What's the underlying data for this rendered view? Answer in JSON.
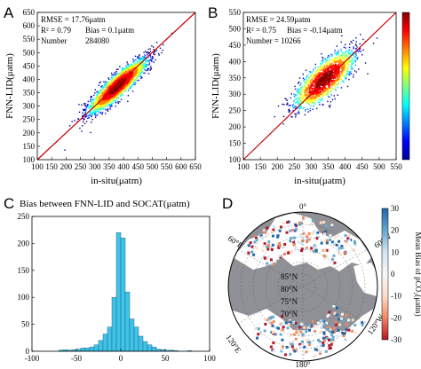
{
  "chart_data": [
    {
      "panel": "A",
      "type": "scatter",
      "density_colored": true,
      "xlabel": "in-situ(μatm)",
      "ylabel": "FNN-LID(μatm)",
      "xlim": [
        100,
        650
      ],
      "ylim": [
        100,
        650
      ],
      "xticks": [
        "100",
        "150",
        "200",
        "250",
        "300",
        "350",
        "400",
        "450",
        "500",
        "550",
        "600",
        "650"
      ],
      "yticks": [
        "100",
        "150",
        "200",
        "250",
        "300",
        "350",
        "400",
        "450",
        "500",
        "550",
        "600",
        "650"
      ],
      "one_to_one_line": true,
      "stats": {
        "rmse_label": "RMSE = 17.76μatm",
        "r2_label": "R² = 0.79",
        "bias_label": "Bias = 0.1μatm",
        "number_label": "Number",
        "number_value": "284080"
      },
      "cluster": {
        "center": [
          380,
          375
        ],
        "x_range": [
          120,
          640
        ],
        "y_range": [
          115,
          640
        ]
      }
    },
    {
      "panel": "B",
      "type": "scatter",
      "density_colored": true,
      "xlabel": "in-situ(μatm)",
      "ylabel": "FNN-LID(μatm)",
      "xlim": [
        100,
        550
      ],
      "ylim": [
        100,
        550
      ],
      "xticks": [
        "100",
        "150",
        "200",
        "250",
        "300",
        "350",
        "400",
        "450",
        "500",
        "550"
      ],
      "yticks": [
        "100",
        "150",
        "200",
        "250",
        "300",
        "350",
        "400",
        "450",
        "500",
        "550"
      ],
      "one_to_one_line": true,
      "stats": {
        "rmse_label": "RMSE = 24.59μatm",
        "r2_label": "R² = 0.75",
        "bias_label": "Bias = -0.14μatm",
        "number_label": "Number = 10266"
      },
      "cluster": {
        "center": [
          340,
          345
        ],
        "x_range": [
          150,
          530
        ],
        "y_range": [
          150,
          540
        ]
      }
    },
    {
      "panel": "C",
      "type": "bar",
      "title": "Bias between FNN-LID and SOCAT(μatm)",
      "xlim": [
        -100,
        100
      ],
      "ylim": [
        0,
        250
      ],
      "xticks": [
        "-100",
        "-50",
        "0",
        "50",
        "100"
      ],
      "yticks": [
        "0",
        "50",
        "100",
        "150",
        "200",
        "250"
      ],
      "bin_width": 5,
      "bin_centers": [
        -97.5,
        -92.5,
        -87.5,
        -82.5,
        -77.5,
        -72.5,
        -67.5,
        -62.5,
        -57.5,
        -52.5,
        -47.5,
        -42.5,
        -37.5,
        -32.5,
        -27.5,
        -22.5,
        -17.5,
        -12.5,
        -7.5,
        -2.5,
        2.5,
        7.5,
        12.5,
        17.5,
        22.5,
        27.5,
        32.5,
        37.5,
        42.5,
        47.5,
        52.5,
        57.5,
        62.5,
        67.5,
        72.5,
        77.5,
        82.5,
        87.5,
        92.5,
        97.5
      ],
      "counts": [
        0,
        0,
        0,
        0,
        0,
        0,
        2,
        3,
        2,
        3,
        4,
        6,
        6,
        8,
        12,
        20,
        32,
        45,
        100,
        220,
        210,
        110,
        60,
        45,
        28,
        18,
        12,
        8,
        4,
        3,
        2,
        2,
        1,
        0,
        0,
        1,
        0,
        0,
        0,
        0
      ]
    },
    {
      "panel": "D",
      "type": "heatmap",
      "map": "south polar stereographic",
      "lat_labels": [
        "70°N",
        "75°N",
        "80°N",
        "85°N"
      ],
      "lon_labels": [
        "0°",
        "60°W",
        "120°W",
        "180°",
        "120°E",
        "60°E"
      ],
      "colorbar_label": "Mean Bias of pCO₂(μatm)",
      "colorbar_range": [
        -30,
        30
      ],
      "colorbar_ticks": [
        "30",
        "20",
        "10",
        "0",
        "-10",
        "-20",
        "-30"
      ]
    }
  ],
  "panel_letters": [
    "A",
    "B",
    "C",
    "D"
  ],
  "colors": {
    "density": [
      "#00008f",
      "#0000ff",
      "#0080ff",
      "#00ffff",
      "#80ff80",
      "#ffff00",
      "#ff8000",
      "#ff0000",
      "#800000"
    ],
    "diverging": [
      "#b2182b",
      "#ef8a62",
      "#fddbc7",
      "#f7f7f7",
      "#d1e5f0",
      "#67a9cf",
      "#2166ac"
    ],
    "bar_fill": "#3fc3e8",
    "one_to_one": "#c80000",
    "land": "#ffffff",
    "ocean": "#8f9196"
  }
}
